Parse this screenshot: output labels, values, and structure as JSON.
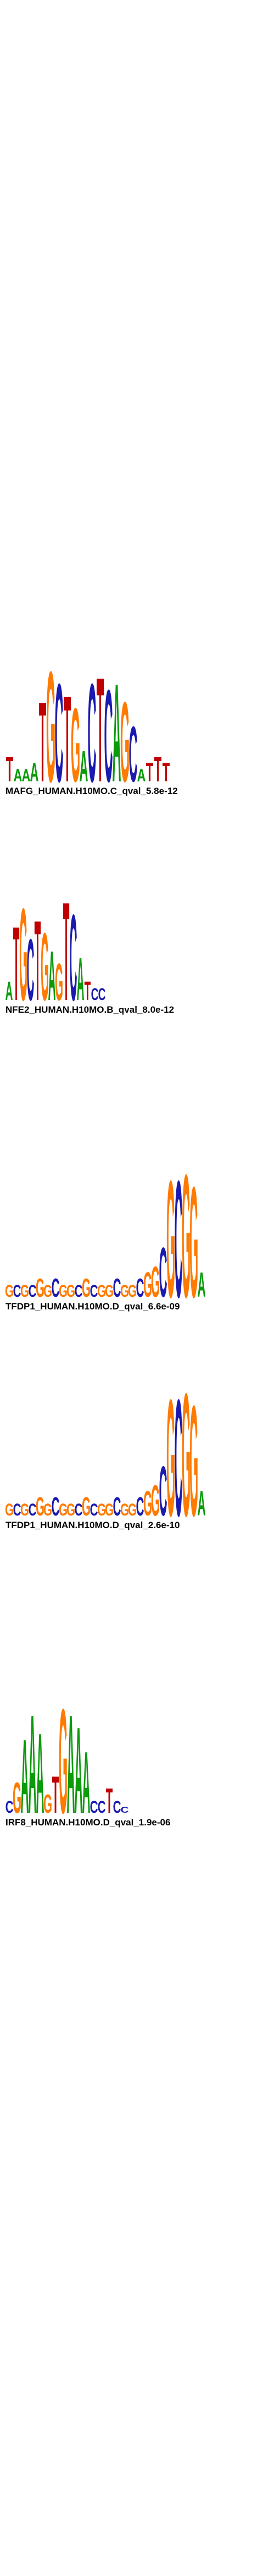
{
  "logos": [
    {
      "label": "MAFG_HUMAN.H10MO.C_qval_5.8e-12",
      "letters": [
        "T",
        "A",
        "A",
        "A",
        "T",
        "G",
        "C",
        "T",
        "G",
        "A",
        "C",
        "T",
        "C",
        "A",
        "G",
        "C",
        "A",
        "T",
        "T",
        "T"
      ],
      "heights": [
        0.4,
        0.2,
        0.2,
        0.3,
        1.3,
        1.8,
        1.6,
        1.4,
        1.2,
        0.5,
        1.6,
        1.7,
        1.5,
        1.6,
        1.3,
        0.9,
        0.2,
        0.3,
        0.4,
        0.3
      ]
    },
    {
      "label": "NFE2_HUMAN.H10MO.B_qval_8.0e-12",
      "letters": [
        "A",
        "T",
        "G",
        "C",
        "T",
        "G",
        "A",
        "G",
        "T",
        "C",
        "A",
        "T",
        "C",
        "C"
      ],
      "heights": [
        0.3,
        1.2,
        1.5,
        1.0,
        1.3,
        1.1,
        0.8,
        0.6,
        1.6,
        1.4,
        0.7,
        0.3,
        0.2,
        0.2
      ]
    },
    {
      "label": "TFDP1_HUMAN.H10MO.D_qval_6.6e-09",
      "letters": [
        "G",
        "C",
        "G",
        "C",
        "G",
        "G",
        "C",
        "G",
        "G",
        "C",
        "G",
        "C",
        "G",
        "G",
        "C",
        "G",
        "G",
        "C",
        "G",
        "G",
        "C",
        "G",
        "C",
        "G",
        "G",
        "A"
      ],
      "heights": [
        0.2,
        0.2,
        0.2,
        0.2,
        0.3,
        0.2,
        0.3,
        0.2,
        0.2,
        0.2,
        0.3,
        0.2,
        0.2,
        0.2,
        0.3,
        0.2,
        0.2,
        0.3,
        0.4,
        0.5,
        0.8,
        1.9,
        1.9,
        2.0,
        1.8,
        0.4
      ]
    },
    {
      "label": "TFDP1_HUMAN.H10MO.D_qval_2.6e-10",
      "letters": [
        "G",
        "C",
        "G",
        "C",
        "G",
        "G",
        "C",
        "G",
        "G",
        "C",
        "G",
        "C",
        "G",
        "G",
        "C",
        "G",
        "G",
        "C",
        "G",
        "G",
        "C",
        "G",
        "C",
        "G",
        "G",
        "A"
      ],
      "heights": [
        0.2,
        0.2,
        0.2,
        0.2,
        0.3,
        0.2,
        0.3,
        0.2,
        0.2,
        0.2,
        0.3,
        0.2,
        0.2,
        0.2,
        0.3,
        0.2,
        0.2,
        0.3,
        0.4,
        0.5,
        0.8,
        1.9,
        1.9,
        2.0,
        1.8,
        0.4
      ]
    },
    {
      "label": "IRF8_HUMAN.H10MO.D_qval_1.9e-06",
      "letters": [
        "C",
        "G",
        "A",
        "A",
        "A",
        "G",
        "T",
        "G",
        "A",
        "A",
        "A",
        "C",
        "C",
        "T",
        "C",
        "C"
      ],
      "heights": [
        0.2,
        0.5,
        1.2,
        1.6,
        1.3,
        0.3,
        0.6,
        1.7,
        1.6,
        1.4,
        1.0,
        0.2,
        0.2,
        0.4,
        0.2,
        0.1
      ]
    }
  ]
}
